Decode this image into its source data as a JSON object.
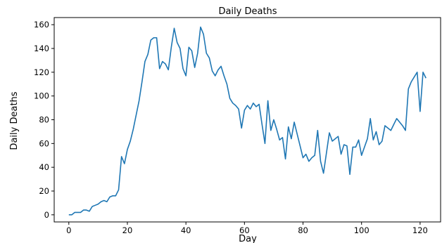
{
  "chart_data": {
    "type": "line",
    "title": "Daily Deaths",
    "xlabel": "Day",
    "ylabel": "Daily Deaths",
    "xlim": [
      -5,
      127
    ],
    "ylim": [
      -6,
      166
    ],
    "xticks": [
      0,
      20,
      40,
      60,
      80,
      100,
      120
    ],
    "yticks": [
      0,
      20,
      40,
      60,
      80,
      100,
      120,
      140,
      160
    ],
    "grid": false,
    "colors": {
      "line": "#1f77b4"
    },
    "series": [
      {
        "x": [
          0,
          1,
          2,
          3,
          4,
          5,
          6,
          7,
          8,
          9,
          10,
          11,
          12,
          13,
          14,
          15,
          16,
          17,
          18,
          19,
          20,
          21,
          22,
          23,
          24,
          25,
          26,
          27,
          28,
          29,
          30,
          31,
          32,
          33,
          34,
          35,
          36,
          37,
          38,
          39,
          40,
          41,
          42,
          43,
          44,
          45,
          46,
          47,
          48,
          49,
          50,
          51,
          52,
          53,
          54,
          55,
          56,
          57,
          58,
          59,
          60,
          61,
          62,
          63,
          64,
          65,
          66,
          67,
          68,
          69,
          70,
          71,
          72,
          73,
          74,
          75,
          76,
          77,
          78,
          79,
          80,
          81,
          82,
          83,
          84,
          85,
          86,
          87,
          88,
          89,
          90,
          91,
          92,
          93,
          94,
          95,
          96,
          97,
          98,
          99,
          100,
          101,
          102,
          103,
          104,
          105,
          106,
          107,
          108,
          109,
          110,
          111,
          112,
          113,
          114,
          115,
          116,
          117,
          118,
          119,
          120,
          121,
          122
        ],
        "values": [
          0,
          0,
          2,
          2,
          2,
          4,
          4,
          3,
          7,
          8,
          9,
          11,
          12,
          11,
          15,
          16,
          16,
          21,
          49,
          43,
          55,
          62,
          72,
          84,
          96,
          112,
          129,
          135,
          147,
          149,
          149,
          123,
          129,
          127,
          122,
          141,
          157,
          145,
          140,
          123,
          117,
          141,
          138,
          124,
          136,
          158,
          152,
          136,
          132,
          121,
          117,
          122,
          125,
          117,
          110,
          98,
          94,
          92,
          89,
          73,
          88,
          92,
          89,
          94,
          91,
          93,
          76,
          60,
          96,
          71,
          80,
          72,
          63,
          65,
          47,
          74,
          64,
          78,
          68,
          58,
          48,
          51,
          45,
          48,
          50,
          71,
          45,
          35,
          52,
          69,
          62,
          64,
          66,
          51,
          59,
          58,
          34,
          57,
          57,
          63,
          50,
          57,
          64,
          81,
          63,
          70,
          59,
          62,
          75,
          73,
          71,
          76,
          81,
          78,
          75,
          71,
          106,
          112,
          116,
          120,
          87,
          120,
          115
        ]
      }
    ]
  }
}
